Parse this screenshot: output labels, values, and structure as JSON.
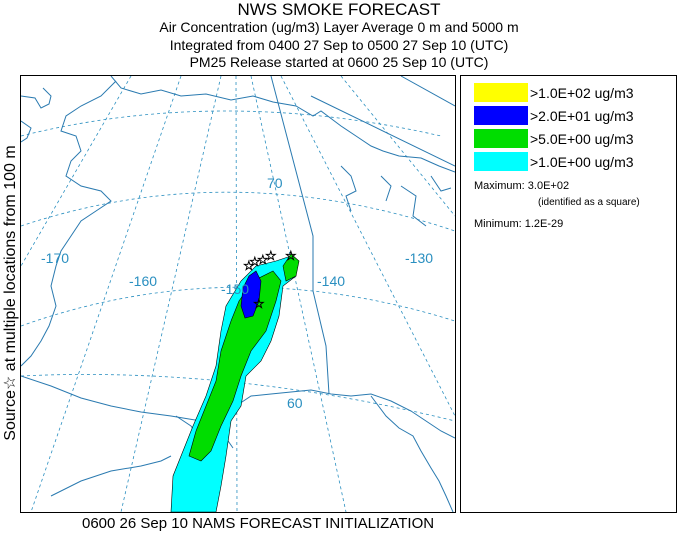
{
  "header": {
    "title": "NWS SMOKE FORECAST",
    "line2": "Air Concentration (ug/m3) Layer Average    0 m and  5000 m",
    "line3": "Integrated from 0400 27 Sep to 0500 27 Sep 10 (UTC)",
    "line4": "PM25 Release started at 0600 25 Sep 10 (UTC)"
  },
  "side_label": "Source☆ at multiple locations  from   100 m",
  "map": {
    "longitude_labels": [
      "-170",
      "-160",
      "-150",
      "-140",
      "-130"
    ],
    "latitude_labels": [
      "70",
      "60"
    ],
    "colors": {
      "coast": "#2a7ab0",
      "grid": "#2a8fc0",
      "level1": "#ffff00",
      "level2": "#0000ff",
      "level3": "#00dd00",
      "level4": "#00ffff"
    }
  },
  "legend": {
    "items": [
      {
        "label": ">1.0E+02 ug/m3",
        "color": "#ffff00"
      },
      {
        "label": ">2.0E+01 ug/m3",
        "color": "#0000ff"
      },
      {
        "label": ">5.0E+00 ug/m3",
        "color": "#00dd00"
      },
      {
        "label": ">1.0E+00 ug/m3",
        "color": "#00ffff"
      }
    ],
    "maximum_label": "Maximum: 3.0E+02",
    "maximum_note": "(identified as a square)",
    "minimum_label": "Minimum: 1.2E-29"
  },
  "footer": "0600 26 Sep 10 NAMS FORECAST INITIALIZATION"
}
